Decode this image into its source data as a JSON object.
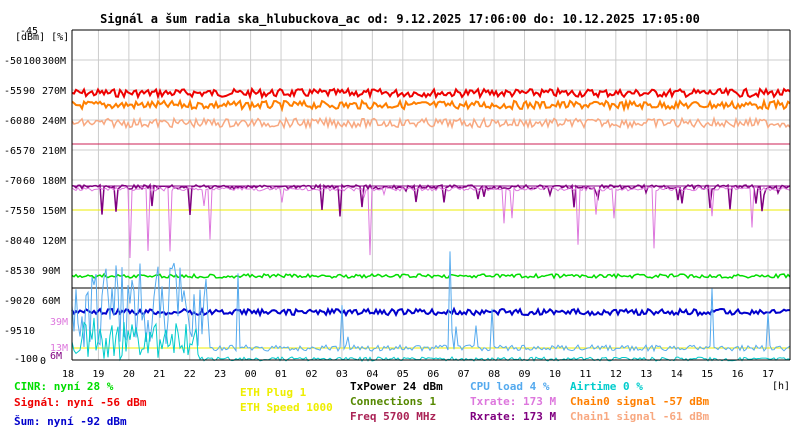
{
  "chart_data": {
    "type": "line",
    "title": "Signál a šum radia ska_hlubuckova_ac od: 9.12.2025 17:06:00 do: 10.12.2025 17:05:00",
    "y_unit_label": "[dBm] [%]",
    "y_ticks_dbm": [
      "-45",
      "-50",
      "-55",
      "-60",
      "-65",
      "-70",
      "-75",
      "-80",
      "-85",
      "-90",
      "-95",
      "-100"
    ],
    "y_ticks_pct": [
      "100",
      "90",
      "80",
      "70",
      "60",
      "50",
      "40",
      "30",
      "20",
      "10",
      "0"
    ],
    "y_ticks_rate": [
      "300M",
      "270M",
      "240M",
      "210M",
      "180M",
      "150M",
      "120M",
      "90M",
      "60M"
    ],
    "x_ticks": [
      "18",
      "19",
      "20",
      "21",
      "22",
      "23",
      "00",
      "01",
      "02",
      "03",
      "04",
      "05",
      "06",
      "07",
      "08",
      "09",
      "10",
      "11",
      "12",
      "13",
      "14",
      "15",
      "16",
      "17"
    ],
    "x_unit": "[h]",
    "ylim_dbm": [
      -100,
      -45
    ],
    "side_markers": {
      "txrate": "39M",
      "rxrate": "13M",
      "low": "6M"
    },
    "series": [
      {
        "name": "Signál",
        "color": "#ee0000",
        "level_dbm": -55.5
      },
      {
        "name": "Chain0 signal",
        "color": "#ff7f00",
        "level_dbm": -57.5
      },
      {
        "name": "Chain1 signal",
        "color": "#f8a880",
        "level_dbm": -60.5
      },
      {
        "name": "CINR",
        "color": "#00dd00",
        "level_pct": 28
      },
      {
        "name": "Šum",
        "color": "#0000cc",
        "level_dbm": -92
      },
      {
        "name": "Rxrate",
        "color": "#800080",
        "level_rate_m": 173
      },
      {
        "name": "Txrate",
        "color": "#dd77dd",
        "level_rate_m": 173
      },
      {
        "name": "CPU load",
        "color": "#55aaee",
        "level_pct": 4
      },
      {
        "name": "Airtime",
        "color": "#00cccc",
        "level_pct": 0
      }
    ],
    "reference_lines": [
      {
        "color": "#cc2255",
        "level_dbm": -64
      },
      {
        "color": "#880088",
        "level_dbm": -71
      },
      {
        "color": "#eeee00",
        "level_dbm": -75
      },
      {
        "color": "#000000",
        "level_dbm": -88
      },
      {
        "color": "#eeee00",
        "level_dbm": -98
      }
    ]
  },
  "legend": {
    "cinr": "CINR: nyní 28 %",
    "signal": "Signál: nyní -56 dBm",
    "sum": "Šum: nyní -92 dBm",
    "eth_plug": "ETH Plug 1",
    "eth_speed": "ETH Speed 1000",
    "txpower": "TxPower 24 dBm",
    "connections": "Connections 1",
    "freq": "Freq 5700 MHz",
    "cpu": "CPU load 4 %",
    "txrate": "Txrate: 173 M",
    "rxrate": "Rxrate: 173 M",
    "airtime": "Airtime 0 %",
    "chain0": "Chain0 signal -57 dBm",
    "chain1": "Chain1 signal -61 dBm"
  },
  "colors": {
    "cinr": "#00dd00",
    "signal": "#ee0000",
    "sum": "#0000cc",
    "eth": "#eeee00",
    "txpower": "#000000",
    "connections": "#558800",
    "freq": "#aa2255",
    "cpu": "#55aaee",
    "txrate": "#dd77dd",
    "rxrate": "#800080",
    "airtime": "#00cccc",
    "chain0": "#ff7f00",
    "chain1": "#f8a880"
  }
}
